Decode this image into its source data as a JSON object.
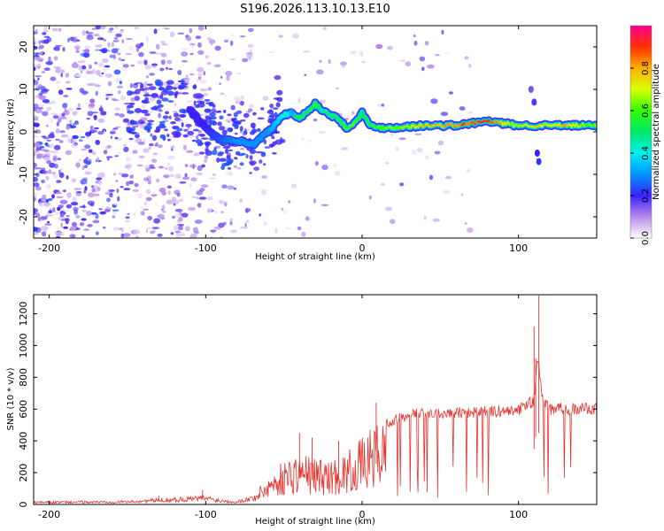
{
  "chart_data": [
    {
      "type": "heatmap",
      "title": "S196.2026.113.10.13.E10",
      "xlabel": "Height of straight line (km)",
      "ylabel": "Frequency (Hz)",
      "xlim": [
        -210,
        150
      ],
      "ylim": [
        -25,
        25
      ],
      "x_ticks": [
        -200,
        -100,
        0,
        100
      ],
      "y_ticks": [
        -20,
        -10,
        0,
        10,
        20
      ],
      "x_tick_labels": [
        "-200",
        "-100",
        "0",
        "100"
      ],
      "y_tick_labels": [
        "-20",
        "-10",
        "0",
        "10",
        "20"
      ],
      "colorbar": {
        "label": "Normalized spectral amplitude",
        "range": [
          0,
          1
        ],
        "ticks": [
          0.0,
          0.2,
          0.4,
          0.6,
          0.8
        ],
        "tick_labels": [
          "0.0",
          "0.2",
          "0.4",
          "0.6",
          "0.8"
        ]
      },
      "ridge": {
        "x": [
          -110,
          -100,
          -90,
          -80,
          -70,
          -60,
          -50,
          -45,
          -40,
          -35,
          -30,
          -25,
          -20,
          -15,
          -10,
          -5,
          0,
          5,
          10,
          20,
          40,
          60,
          80,
          90,
          100,
          110,
          120,
          130,
          140,
          150
        ],
        "y": [
          5,
          1,
          -2,
          -2,
          -3,
          0,
          4,
          4.5,
          3,
          5,
          6.5,
          5,
          4,
          3,
          1,
          2,
          4.5,
          1.5,
          1,
          1,
          1.5,
          1.5,
          2.5,
          2,
          1.5,
          1.5,
          1.5,
          1.5,
          1.5,
          1.5
        ],
        "amplitude": [
          0.2,
          0.2,
          0.25,
          0.3,
          0.3,
          0.3,
          0.4,
          0.45,
          0.55,
          0.5,
          0.6,
          0.45,
          0.5,
          0.55,
          0.6,
          0.6,
          0.5,
          0.55,
          0.6,
          0.65,
          0.75,
          0.85,
          0.9,
          0.75,
          0.65,
          0.75,
          0.7,
          0.8,
          0.65,
          0.6
        ]
      },
      "grid": false
    },
    {
      "type": "line",
      "xlabel": "Height of straight line (km)",
      "ylabel": "SNR (10 * v/v)",
      "xlim": [
        -210,
        150
      ],
      "ylim": [
        0,
        1320
      ],
      "x_ticks": [
        -200,
        -100,
        0,
        100
      ],
      "y_ticks": [
        0,
        200,
        400,
        600,
        800,
        1000,
        1200
      ],
      "x_tick_labels": [
        "-200",
        "-100",
        "0",
        "100"
      ],
      "y_tick_labels": [
        "0",
        "200",
        "400",
        "600",
        "800",
        "1000",
        "1200"
      ],
      "series": [
        {
          "name": "SNR",
          "color": "#e8322d",
          "envelope_x": [
            -210,
            -150,
            -130,
            -100,
            -90,
            -80,
            -70,
            -60,
            -50,
            -40,
            -30,
            -20,
            -10,
            0,
            10,
            20,
            30,
            40,
            60,
            80,
            100,
            110,
            112,
            115,
            120,
            130,
            150
          ],
          "envelope_y": [
            20,
            25,
            40,
            60,
            35,
            25,
            60,
            180,
            280,
            330,
            300,
            280,
            330,
            420,
            520,
            560,
            600,
            610,
            620,
            620,
            630,
            700,
            1000,
            700,
            640,
            640,
            640
          ]
        }
      ],
      "peaks": [
        {
          "x": 113,
          "y": 1320
        },
        {
          "x": 110,
          "y": 1120
        },
        {
          "x": 111,
          "y": 920
        },
        {
          "x": 9,
          "y": 640
        },
        {
          "x": -40,
          "y": 450
        },
        {
          "x": -32,
          "y": 420
        },
        {
          "x": -15,
          "y": 400
        },
        {
          "x": -102,
          "y": 90
        },
        {
          "x": -130,
          "y": 55
        }
      ],
      "grid": false
    }
  ]
}
